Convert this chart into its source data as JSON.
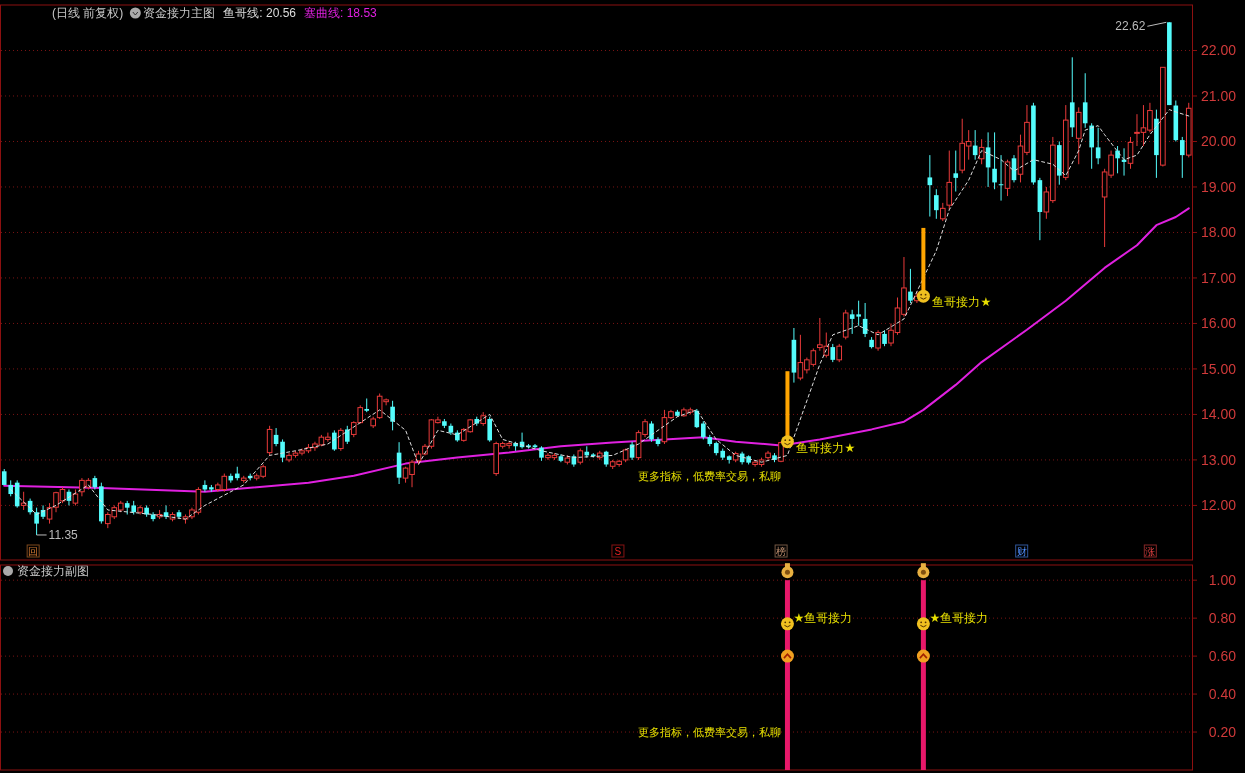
{
  "chart_data": [
    {
      "type": "candlestick",
      "title": "资金接力主图",
      "subtitle": "(日线 前复权)",
      "legend": "top left",
      "grid": "y",
      "ylim": [
        10.8,
        23.0
      ],
      "yticks": [
        {
          "value": 12,
          "label": "12.00"
        },
        {
          "value": 13,
          "label": "13.00"
        },
        {
          "value": 14,
          "label": "14.00"
        },
        {
          "value": 15,
          "label": "15.00"
        },
        {
          "value": 16,
          "label": "16.00"
        },
        {
          "value": 17,
          "label": "17.00"
        },
        {
          "value": 18,
          "label": "18.00"
        },
        {
          "value": 19,
          "label": "19.00"
        },
        {
          "value": 20,
          "label": "20.00"
        },
        {
          "value": 21,
          "label": "21.00"
        },
        {
          "value": 22,
          "label": "22.00"
        }
      ],
      "categories": [
        null,
        null,
        null,
        null,
        null,
        null,
        null,
        null,
        null,
        null,
        null,
        null,
        null,
        null,
        null,
        null,
        null,
        null,
        null,
        null,
        null,
        null,
        null,
        null,
        null,
        null,
        null,
        null,
        null,
        null,
        null,
        null,
        null,
        null,
        null,
        null,
        null,
        null,
        null,
        null,
        null,
        null,
        null,
        null,
        null,
        null,
        null,
        null,
        null,
        null,
        null,
        null,
        null,
        null,
        null,
        null,
        null,
        null,
        null,
        null,
        null,
        null,
        null,
        null,
        null,
        null,
        null,
        null,
        null,
        null,
        null,
        null,
        null,
        null,
        null,
        null,
        null,
        null,
        null,
        null,
        null,
        null,
        null,
        null,
        null,
        null,
        null,
        null,
        null,
        null,
        null,
        null,
        null,
        null,
        null,
        null,
        null,
        null,
        null,
        null,
        null,
        null,
        null,
        null,
        null,
        null,
        null,
        null,
        null,
        null,
        null,
        null,
        null,
        null,
        null,
        null,
        null,
        null,
        null,
        null,
        null,
        null,
        null,
        null,
        null,
        null,
        null,
        null,
        null,
        null,
        null,
        null,
        null,
        null,
        null,
        null,
        null,
        null,
        null,
        null,
        null,
        null,
        null,
        null,
        null,
        null,
        null,
        null,
        null,
        null,
        null,
        null,
        null,
        null,
        null,
        null,
        null,
        null,
        null,
        null,
        null,
        null,
        null,
        null,
        null,
        null,
        null,
        null,
        null,
        null,
        null,
        null,
        null,
        null,
        null,
        null,
        null,
        null,
        null,
        null,
        null,
        null,
        null,
        null
      ],
      "ohlc": [
        [
          12.75,
          12.8,
          12.45,
          12.45
        ],
        [
          12.45,
          12.55,
          12.2,
          12.25
        ],
        [
          12.5,
          12.55,
          11.95,
          11.98
        ],
        [
          12.0,
          12.3,
          11.9,
          12.05
        ],
        [
          12.1,
          12.15,
          11.8,
          11.85
        ],
        [
          11.85,
          11.95,
          11.35,
          11.6
        ],
        [
          11.9,
          12.0,
          11.7,
          11.75
        ],
        [
          11.7,
          12.05,
          11.6,
          11.95
        ],
        [
          11.96,
          12.3,
          11.85,
          12.28
        ],
        [
          12.1,
          12.4,
          12.05,
          12.35
        ],
        [
          12.3,
          12.35,
          12.0,
          12.1
        ],
        [
          12.05,
          12.35,
          12.0,
          12.25
        ],
        [
          12.3,
          12.6,
          12.2,
          12.55
        ],
        [
          12.4,
          12.6,
          12.35,
          12.55
        ],
        [
          12.6,
          12.65,
          12.35,
          12.4
        ],
        [
          12.42,
          12.5,
          11.6,
          11.65
        ],
        [
          11.6,
          11.85,
          11.5,
          11.8
        ],
        [
          11.75,
          12.0,
          11.7,
          11.95
        ],
        [
          11.9,
          12.1,
          11.85,
          12.05
        ],
        [
          12.05,
          12.1,
          11.8,
          11.95
        ],
        [
          12.0,
          12.1,
          11.8,
          11.85
        ],
        [
          11.85,
          12.0,
          11.8,
          11.95
        ],
        [
          11.95,
          12.0,
          11.75,
          11.8
        ],
        [
          11.8,
          11.85,
          11.65,
          11.7
        ],
        [
          11.75,
          11.9,
          11.7,
          11.8
        ],
        [
          11.85,
          12.0,
          11.7,
          11.75
        ],
        [
          11.7,
          11.85,
          11.65,
          11.8
        ],
        [
          11.85,
          11.9,
          11.7,
          11.75
        ],
        [
          11.7,
          11.8,
          11.6,
          11.75
        ],
        [
          11.75,
          11.95,
          11.7,
          11.9
        ],
        [
          11.85,
          12.4,
          11.8,
          12.35
        ],
        [
          12.45,
          12.55,
          12.3,
          12.35
        ],
        [
          12.4,
          12.45,
          12.3,
          12.35
        ],
        [
          12.35,
          12.5,
          12.3,
          12.45
        ],
        [
          12.35,
          12.7,
          12.3,
          12.64
        ],
        [
          12.65,
          12.7,
          12.5,
          12.55
        ],
        [
          12.7,
          12.85,
          12.55,
          12.6
        ],
        [
          12.55,
          12.65,
          12.5,
          12.6
        ],
        [
          12.65,
          12.7,
          12.55,
          12.6
        ],
        [
          12.6,
          12.7,
          12.55,
          12.65
        ],
        [
          12.64,
          12.9,
          12.6,
          12.85
        ],
        [
          13.16,
          13.75,
          13.1,
          13.67
        ],
        [
          13.55,
          13.7,
          13.3,
          13.35
        ],
        [
          13.4,
          13.45,
          12.95,
          13.05
        ],
        [
          13.0,
          13.15,
          12.95,
          13.1
        ],
        [
          13.1,
          13.2,
          13.05,
          13.15
        ],
        [
          13.15,
          13.25,
          13.1,
          13.2
        ],
        [
          13.2,
          13.35,
          13.15,
          13.27
        ],
        [
          13.27,
          13.4,
          13.2,
          13.35
        ],
        [
          13.33,
          13.55,
          13.3,
          13.5
        ],
        [
          13.45,
          13.6,
          13.4,
          13.5
        ],
        [
          13.6,
          13.65,
          13.2,
          13.23
        ],
        [
          13.25,
          13.7,
          13.2,
          13.65
        ],
        [
          13.67,
          13.75,
          13.35,
          13.4
        ],
        [
          13.56,
          13.85,
          13.5,
          13.82
        ],
        [
          13.82,
          14.2,
          13.8,
          14.15
        ],
        [
          14.12,
          14.35,
          14.05,
          14.08
        ],
        [
          13.75,
          13.95,
          13.7,
          13.9
        ],
        [
          13.93,
          14.46,
          13.9,
          14.4
        ],
        [
          14.28,
          14.35,
          14.2,
          14.32
        ],
        [
          14.17,
          14.3,
          13.65,
          13.84
        ],
        [
          13.16,
          13.39,
          12.47,
          12.61
        ],
        [
          12.6,
          12.85,
          12.5,
          12.82
        ],
        [
          12.68,
          13.0,
          12.4,
          12.95
        ],
        [
          12.98,
          13.2,
          12.9,
          13.13
        ],
        [
          13.13,
          13.35,
          13.1,
          13.3
        ],
        [
          13.3,
          13.9,
          13.25,
          13.88
        ],
        [
          13.82,
          13.95,
          13.8,
          13.88
        ],
        [
          13.85,
          13.9,
          13.7,
          13.75
        ],
        [
          13.75,
          13.8,
          13.55,
          13.6
        ],
        [
          13.6,
          13.65,
          13.4,
          13.43
        ],
        [
          13.43,
          13.7,
          13.4,
          13.67
        ],
        [
          13.62,
          13.9,
          13.6,
          13.88
        ],
        [
          13.9,
          13.95,
          13.75,
          13.8
        ],
        [
          13.8,
          14.05,
          13.75,
          13.97
        ],
        [
          13.9,
          13.95,
          13.4,
          13.43
        ],
        [
          12.7,
          13.4,
          12.65,
          13.36
        ],
        [
          13.3,
          13.4,
          13.25,
          13.36
        ],
        [
          13.32,
          13.4,
          13.25,
          13.36
        ],
        [
          13.37,
          13.4,
          13.2,
          13.3
        ],
        [
          13.4,
          13.6,
          13.25,
          13.28
        ],
        [
          13.32,
          13.35,
          13.25,
          13.28
        ],
        [
          13.32,
          13.35,
          13.25,
          13.28
        ],
        [
          13.27,
          13.3,
          12.98,
          13.05
        ],
        [
          13.05,
          13.15,
          13.0,
          13.1
        ],
        [
          13.05,
          13.15,
          13.0,
          13.1
        ],
        [
          13.08,
          13.12,
          12.95,
          12.98
        ],
        [
          12.95,
          13.1,
          12.9,
          13.04
        ],
        [
          13.08,
          13.12,
          12.85,
          12.9
        ],
        [
          12.95,
          13.25,
          12.9,
          13.2
        ],
        [
          13.18,
          13.3,
          13.05,
          13.1
        ],
        [
          13.12,
          13.15,
          13.05,
          13.08
        ],
        [
          13.05,
          13.2,
          13.0,
          13.15
        ],
        [
          13.18,
          13.2,
          12.85,
          12.9
        ],
        [
          12.86,
          13.0,
          12.8,
          12.96
        ],
        [
          12.9,
          13.0,
          12.85,
          12.97
        ],
        [
          13.0,
          13.25,
          12.95,
          13.22
        ],
        [
          13.34,
          13.4,
          13.0,
          13.05
        ],
        [
          13.05,
          13.65,
          13.0,
          13.6
        ],
        [
          13.56,
          13.9,
          13.5,
          13.84
        ],
        [
          13.8,
          13.85,
          13.4,
          13.45
        ],
        [
          13.45,
          13.5,
          13.3,
          13.35
        ],
        [
          13.4,
          14.1,
          13.35,
          13.93
        ],
        [
          13.93,
          14.1,
          13.9,
          14.06
        ],
        [
          14.06,
          14.1,
          13.95,
          13.97
        ],
        [
          13.97,
          14.15,
          13.95,
          14.1
        ],
        [
          14.05,
          14.15,
          14.0,
          14.1
        ],
        [
          14.08,
          14.12,
          13.7,
          13.72
        ],
        [
          13.8,
          13.85,
          13.45,
          13.5
        ],
        [
          13.5,
          13.55,
          13.3,
          13.35
        ],
        [
          13.37,
          13.4,
          13.1,
          13.15
        ],
        [
          13.2,
          13.25,
          13.0,
          13.05
        ],
        [
          13.08,
          13.1,
          12.92,
          13.0
        ],
        [
          13.0,
          13.18,
          12.95,
          13.14
        ],
        [
          13.14,
          13.18,
          12.9,
          12.95
        ],
        [
          13.08,
          13.1,
          12.9,
          12.94
        ],
        [
          12.9,
          12.98,
          12.85,
          12.95
        ],
        [
          12.9,
          13.05,
          12.85,
          13.0
        ],
        [
          13.05,
          13.2,
          13.0,
          13.15
        ],
        [
          13.1,
          13.15,
          12.95,
          13.0
        ],
        [
          12.97,
          13.4,
          12.95,
          13.38
        ],
        null,
        [
          15.64,
          15.9,
          14.7,
          14.92
        ],
        [
          14.8,
          15.75,
          14.75,
          15.14
        ],
        [
          14.98,
          15.25,
          14.9,
          15.2
        ],
        [
          15.1,
          15.45,
          15.05,
          15.4
        ],
        [
          15.47,
          16.12,
          15.4,
          15.53
        ],
        [
          15.3,
          15.8,
          15.25,
          15.5
        ],
        [
          15.48,
          15.55,
          15.15,
          15.2
        ],
        [
          15.2,
          15.55,
          15.15,
          15.5
        ],
        [
          15.7,
          16.3,
          15.65,
          16.23
        ],
        [
          16.2,
          16.3,
          15.77,
          16.1
        ],
        [
          16.2,
          16.5,
          15.95,
          16.15
        ],
        [
          16.1,
          16.45,
          15.7,
          15.77
        ],
        [
          15.64,
          15.7,
          15.45,
          15.48
        ],
        [
          15.46,
          15.85,
          15.4,
          15.8
        ],
        [
          15.77,
          15.85,
          15.5,
          15.55
        ],
        [
          15.57,
          16.0,
          15.5,
          15.85
        ],
        [
          15.8,
          16.57,
          15.75,
          16.34
        ],
        [
          16.2,
          17.46,
          16.15,
          16.78
        ],
        [
          16.7,
          17.2,
          16.45,
          16.5
        ],
        [
          16.5,
          16.7,
          16.45,
          16.6
        ],
        null,
        [
          19.21,
          19.7,
          18.35,
          19.04
        ],
        [
          18.82,
          18.95,
          18.3,
          18.49
        ],
        [
          18.3,
          18.65,
          18.25,
          18.53
        ],
        [
          18.6,
          19.8,
          18.5,
          19.1
        ],
        [
          19.3,
          19.8,
          18.9,
          19.2
        ],
        [
          19.37,
          20.5,
          19.3,
          19.96
        ],
        [
          19.9,
          20.25,
          19.6,
          20.0
        ],
        [
          19.91,
          20.25,
          19.6,
          19.7
        ],
        [
          19.62,
          20.05,
          19.5,
          19.87
        ],
        [
          19.87,
          20.2,
          19.0,
          19.43
        ],
        [
          19.4,
          20.2,
          18.95,
          19.1
        ],
        [
          19.06,
          19.7,
          18.7,
          19.04
        ],
        [
          18.97,
          19.6,
          18.8,
          19.55
        ],
        [
          19.63,
          19.7,
          19.1,
          19.15
        ],
        [
          19.28,
          20.15,
          19.1,
          19.9
        ],
        [
          19.76,
          20.8,
          19.7,
          20.42
        ],
        [
          20.79,
          20.85,
          19.05,
          19.1
        ],
        [
          19.15,
          19.2,
          17.83,
          18.45
        ],
        [
          18.45,
          19.0,
          18.3,
          18.89
        ],
        [
          18.7,
          20.1,
          18.65,
          19.92
        ],
        [
          19.92,
          20.0,
          19.05,
          19.25
        ],
        [
          19.21,
          20.8,
          19.15,
          20.47
        ],
        [
          20.86,
          21.85,
          20.1,
          20.31
        ],
        [
          20.07,
          20.75,
          19.5,
          20.64
        ],
        [
          20.86,
          21.5,
          20.3,
          20.4
        ],
        [
          20.35,
          20.4,
          19.4,
          19.87
        ],
        [
          19.87,
          20.3,
          19.5,
          19.63
        ],
        [
          18.78,
          19.4,
          17.68,
          19.33
        ],
        [
          19.26,
          19.8,
          19.2,
          19.7
        ],
        [
          19.8,
          19.9,
          19.3,
          19.63
        ],
        [
          19.6,
          19.85,
          19.25,
          19.55
        ],
        [
          19.52,
          20.1,
          19.4,
          19.98
        ],
        [
          20.18,
          20.6,
          19.9,
          20.2
        ],
        [
          20.2,
          20.8,
          19.9,
          20.3
        ],
        [
          20.25,
          20.85,
          20.2,
          20.68
        ],
        [
          20.5,
          20.7,
          19.2,
          19.7
        ],
        [
          19.48,
          21.63,
          19.45,
          21.63
        ],
        [
          22.62,
          22.62,
          20.8,
          20.8
        ],
        [
          20.79,
          20.9,
          20.0,
          20.03
        ],
        [
          20.03,
          20.1,
          19.2,
          19.7
        ],
        [
          19.7,
          20.85,
          19.65,
          20.73
        ]
      ],
      "series": [
        {
          "type": "line",
          "name": "鱼哥线: 20.56",
          "color": "#dddddd",
          "line_style": "dashed",
          "values": [
            null,
            12.35,
            null,
            null,
            null,
            11.8,
            null,
            null,
            12.0,
            null,
            null,
            null,
            null,
            12.45,
            null,
            null,
            11.9,
            null,
            null,
            null,
            null,
            null,
            null,
            11.8,
            null,
            null,
            null,
            null,
            11.7,
            null,
            null,
            12.0,
            null,
            null,
            null,
            null,
            null,
            12.45,
            null,
            null,
            null,
            13.1,
            null,
            null,
            null,
            13.2,
            null,
            null,
            null,
            null,
            13.35,
            null,
            null,
            null,
            null,
            null,
            null,
            null,
            14.1,
            null,
            null,
            null,
            13.65,
            null,
            12.9,
            null,
            null,
            13.65,
            null,
            null,
            13.55,
            null,
            null,
            null,
            null,
            14.0,
            null,
            13.45,
            null,
            null,
            null,
            null,
            null,
            13.2,
            null,
            null,
            null,
            null,
            13.05,
            null,
            null,
            null,
            null,
            null,
            13.1,
            null,
            null,
            null,
            13.35,
            null,
            null,
            null,
            null,
            null,
            13.95,
            null,
            null,
            14.1,
            null,
            null,
            13.45,
            null,
            null,
            13.1,
            null,
            null,
            null,
            12.95,
            null,
            null,
            null,
            13.1,
            null,
            13.9,
            null,
            null,
            15.1,
            null,
            15.75,
            null,
            null,
            null,
            15.95,
            null,
            null,
            15.75,
            null,
            null,
            null,
            16.1,
            null,
            null,
            null,
            null,
            17.6,
            null,
            18.5,
            null,
            null,
            19.15,
            null,
            19.8,
            null,
            null,
            19.6,
            null,
            19.35,
            null,
            null,
            19.6,
            null,
            null,
            19.5,
            null,
            19.25,
            null,
            19.8,
            20.25,
            null,
            20.35,
            20.15,
            null,
            null,
            19.6,
            null,
            19.7,
            null,
            20.15,
            null,
            null,
            20.7,
            20.65,
            null,
            20.56
          ]
        },
        {
          "type": "line",
          "name": "塞曲线: 18.53",
          "color": "#e020e0",
          "values": [
            12.43,
            null,
            null,
            null,
            null,
            null,
            null,
            null,
            null,
            null,
            null,
            null,
            null,
            null,
            null,
            12.38,
            null,
            null,
            null,
            null,
            null,
            null,
            null,
            null,
            null,
            null,
            null,
            null,
            null,
            null,
            null,
            12.3,
            null,
            null,
            null,
            null,
            null,
            null,
            null,
            null,
            null,
            null,
            null,
            null,
            null,
            null,
            null,
            12.5,
            null,
            null,
            null,
            null,
            null,
            null,
            12.65,
            null,
            null,
            null,
            null,
            null,
            null,
            null,
            12.92,
            null,
            null,
            null,
            null,
            null,
            null,
            null,
            13.05,
            null,
            null,
            null,
            null,
            null,
            null,
            null,
            13.16,
            null,
            null,
            null,
            null,
            null,
            null,
            null,
            13.3,
            null,
            null,
            null,
            null,
            null,
            null,
            null,
            13.38,
            null,
            null,
            null,
            null,
            null,
            null,
            null,
            13.45,
            null,
            null,
            null,
            null,
            null,
            13.5,
            null,
            null,
            null,
            null,
            13.4,
            null,
            null,
            null,
            null,
            null,
            null,
            13.32,
            null,
            null,
            null,
            null,
            null,
            13.45,
            null,
            null,
            null,
            null,
            null,
            null,
            null,
            13.67,
            null,
            null,
            null,
            null,
            13.84,
            null,
            null,
            14.1,
            null,
            null,
            null,
            null,
            14.65,
            null,
            null,
            null,
            15.15,
            null,
            null,
            null,
            null,
            null,
            null,
            15.86,
            null,
            null,
            null,
            null,
            null,
            16.5,
            null,
            null,
            null,
            null,
            null,
            17.22,
            null,
            null,
            null,
            null,
            17.72,
            null,
            null,
            18.16,
            null,
            null,
            18.34,
            null,
            18.53
          ]
        },
        {
          "type": "bar",
          "color": "#ffa500",
          "values": [
            null,
            null,
            null,
            null,
            null,
            null,
            null,
            null,
            null,
            null,
            null,
            null,
            null,
            null,
            null,
            null,
            null,
            null,
            null,
            null,
            null,
            null,
            null,
            null,
            null,
            null,
            null,
            null,
            null,
            null,
            null,
            null,
            null,
            null,
            null,
            null,
            null,
            null,
            null,
            null,
            null,
            null,
            null,
            null,
            null,
            null,
            null,
            null,
            null,
            null,
            null,
            null,
            null,
            null,
            null,
            null,
            null,
            null,
            null,
            null,
            null,
            null,
            null,
            null,
            null,
            null,
            null,
            null,
            null,
            null,
            null,
            null,
            null,
            null,
            null,
            null,
            null,
            null,
            null,
            null,
            null,
            null,
            null,
            null,
            null,
            null,
            null,
            null,
            null,
            null,
            null,
            null,
            null,
            null,
            null,
            null,
            null,
            null,
            null,
            null,
            null,
            null,
            null,
            null,
            null,
            null,
            null,
            null,
            null,
            null,
            null,
            null,
            null,
            null,
            null,
            null,
            null,
            null,
            null,
            null,
            null,
            1.55,
            null,
            null,
            null,
            null,
            null,
            null,
            null,
            null,
            null,
            null,
            null,
            null,
            null,
            null,
            null,
            null,
            null,
            null,
            null,
            null,
            1.5,
            null,
            null,
            null,
            null,
            null,
            null,
            null,
            null,
            null,
            null,
            null,
            null,
            null,
            null,
            null,
            null,
            null,
            null,
            null,
            null,
            null,
            null,
            null,
            null,
            null,
            null,
            null,
            null,
            null,
            null,
            null,
            null,
            null,
            null,
            null,
            null,
            null,
            null,
            null,
            null,
            null
          ],
          "base": [
            null,
            null,
            null,
            null,
            null,
            null,
            null,
            null,
            null,
            null,
            null,
            null,
            null,
            null,
            null,
            null,
            null,
            null,
            null,
            null,
            null,
            null,
            null,
            null,
            null,
            null,
            null,
            null,
            null,
            null,
            null,
            null,
            null,
            null,
            null,
            null,
            null,
            null,
            null,
            null,
            null,
            null,
            null,
            null,
            null,
            null,
            null,
            null,
            null,
            null,
            null,
            null,
            null,
            null,
            null,
            null,
            null,
            null,
            null,
            null,
            null,
            null,
            null,
            null,
            null,
            null,
            null,
            null,
            null,
            null,
            null,
            null,
            null,
            null,
            null,
            null,
            null,
            null,
            null,
            null,
            null,
            null,
            null,
            null,
            null,
            null,
            null,
            null,
            null,
            null,
            null,
            null,
            null,
            null,
            null,
            null,
            null,
            null,
            null,
            null,
            null,
            null,
            null,
            null,
            null,
            null,
            null,
            null,
            null,
            null,
            null,
            null,
            null,
            null,
            null,
            null,
            null,
            null,
            null,
            null,
            null,
            13.4,
            null,
            null,
            null,
            null,
            null,
            null,
            null,
            null,
            null,
            null,
            null,
            null,
            null,
            null,
            null,
            null,
            null,
            null,
            null,
            null,
            16.6,
            null,
            null,
            null,
            null,
            null,
            null,
            null,
            null,
            null,
            null,
            null,
            null,
            null,
            null,
            null,
            null,
            null,
            null,
            null,
            null,
            null,
            null,
            null,
            null,
            null,
            null,
            null,
            null,
            null,
            null,
            null,
            null,
            null,
            null,
            null,
            null,
            null,
            null,
            null,
            null,
            null
          ]
        }
      ],
      "annotations": [
        "22.62",
        "11.35",
        "鱼哥接力★",
        "鱼哥接力★",
        "更多指标，低费率交易，私聊",
        "回",
        "S",
        "榜",
        "财",
        "涨"
      ]
    },
    {
      "type": "bar",
      "title": "资金接力副图",
      "grid": "y",
      "color": "#e8186a",
      "ylim": [
        0,
        1.08
      ],
      "yticks": [
        {
          "value": 0.2,
          "label": "0.20"
        },
        {
          "value": 0.4,
          "label": "0.40"
        },
        {
          "value": 0.6,
          "label": "0.60"
        },
        {
          "value": 0.8,
          "label": "0.80"
        },
        {
          "value": 1.0,
          "label": "1.00"
        }
      ],
      "categories": [
        null,
        null,
        null,
        null,
        null,
        null,
        null,
        null,
        null,
        null,
        null,
        null,
        null,
        null,
        null,
        null,
        null,
        null,
        null,
        null,
        null,
        null,
        null,
        null,
        null,
        null,
        null,
        null,
        null,
        null,
        null,
        null,
        null,
        null,
        null,
        null,
        null,
        null,
        null,
        null,
        null,
        null,
        null,
        null,
        null,
        null,
        null,
        null,
        null,
        null,
        null,
        null,
        null,
        null,
        null,
        null,
        null,
        null,
        null,
        null,
        null,
        null,
        null,
        null,
        null,
        null,
        null,
        null,
        null,
        null,
        null,
        null,
        null,
        null,
        null,
        null,
        null,
        null,
        null,
        null,
        null,
        null,
        null,
        null,
        null,
        null,
        null,
        null,
        null,
        null,
        null,
        null,
        null,
        null,
        null,
        null,
        null,
        null,
        null,
        null,
        null,
        null,
        null,
        null,
        null,
        null,
        null,
        null,
        null,
        null,
        null,
        null,
        null,
        null,
        null,
        null,
        null,
        null,
        null,
        null,
        null,
        null,
        null,
        null,
        null,
        null,
        null,
        null,
        null,
        null,
        null,
        null,
        null,
        null,
        null,
        null,
        null,
        null,
        null,
        null,
        null,
        null,
        null,
        null,
        null,
        null,
        null,
        null,
        null,
        null,
        null,
        null,
        null,
        null,
        null,
        null,
        null,
        null,
        null,
        null,
        null,
        null,
        null,
        null,
        null,
        null,
        null,
        null,
        null,
        null,
        null,
        null,
        null,
        null,
        null,
        null,
        null,
        null,
        null,
        null,
        null,
        null,
        null,
        null
      ],
      "values": [
        null,
        null,
        null,
        null,
        null,
        null,
        null,
        null,
        null,
        null,
        null,
        null,
        null,
        null,
        null,
        null,
        null,
        null,
        null,
        null,
        null,
        null,
        null,
        null,
        null,
        null,
        null,
        null,
        null,
        null,
        null,
        null,
        null,
        null,
        null,
        null,
        null,
        null,
        null,
        null,
        null,
        null,
        null,
        null,
        null,
        null,
        null,
        null,
        null,
        null,
        null,
        null,
        null,
        null,
        null,
        null,
        null,
        null,
        null,
        null,
        null,
        null,
        null,
        null,
        null,
        null,
        null,
        null,
        null,
        null,
        null,
        null,
        null,
        null,
        null,
        null,
        null,
        null,
        null,
        null,
        null,
        null,
        null,
        null,
        null,
        null,
        null,
        null,
        null,
        null,
        null,
        null,
        null,
        null,
        null,
        null,
        null,
        null,
        null,
        null,
        null,
        null,
        null,
        null,
        null,
        null,
        null,
        null,
        null,
        null,
        null,
        null,
        null,
        null,
        null,
        null,
        null,
        null,
        null,
        null,
        null,
        1,
        null,
        null,
        null,
        null,
        null,
        null,
        null,
        null,
        null,
        null,
        null,
        null,
        null,
        null,
        null,
        null,
        null,
        null,
        null,
        null,
        1,
        null,
        null,
        null,
        null,
        null,
        null,
        null,
        null,
        null,
        null,
        null,
        null,
        null,
        null,
        null,
        null,
        null,
        null,
        null,
        null,
        null,
        null,
        null,
        null,
        null,
        null,
        null,
        null,
        null,
        null,
        null,
        null,
        null,
        null,
        null,
        null,
        null,
        null,
        null,
        null,
        null
      ],
      "annotations": [
        "★鱼哥接力",
        "★鱼哥接力",
        "更多指标，低费率交易，私聊"
      ]
    }
  ]
}
